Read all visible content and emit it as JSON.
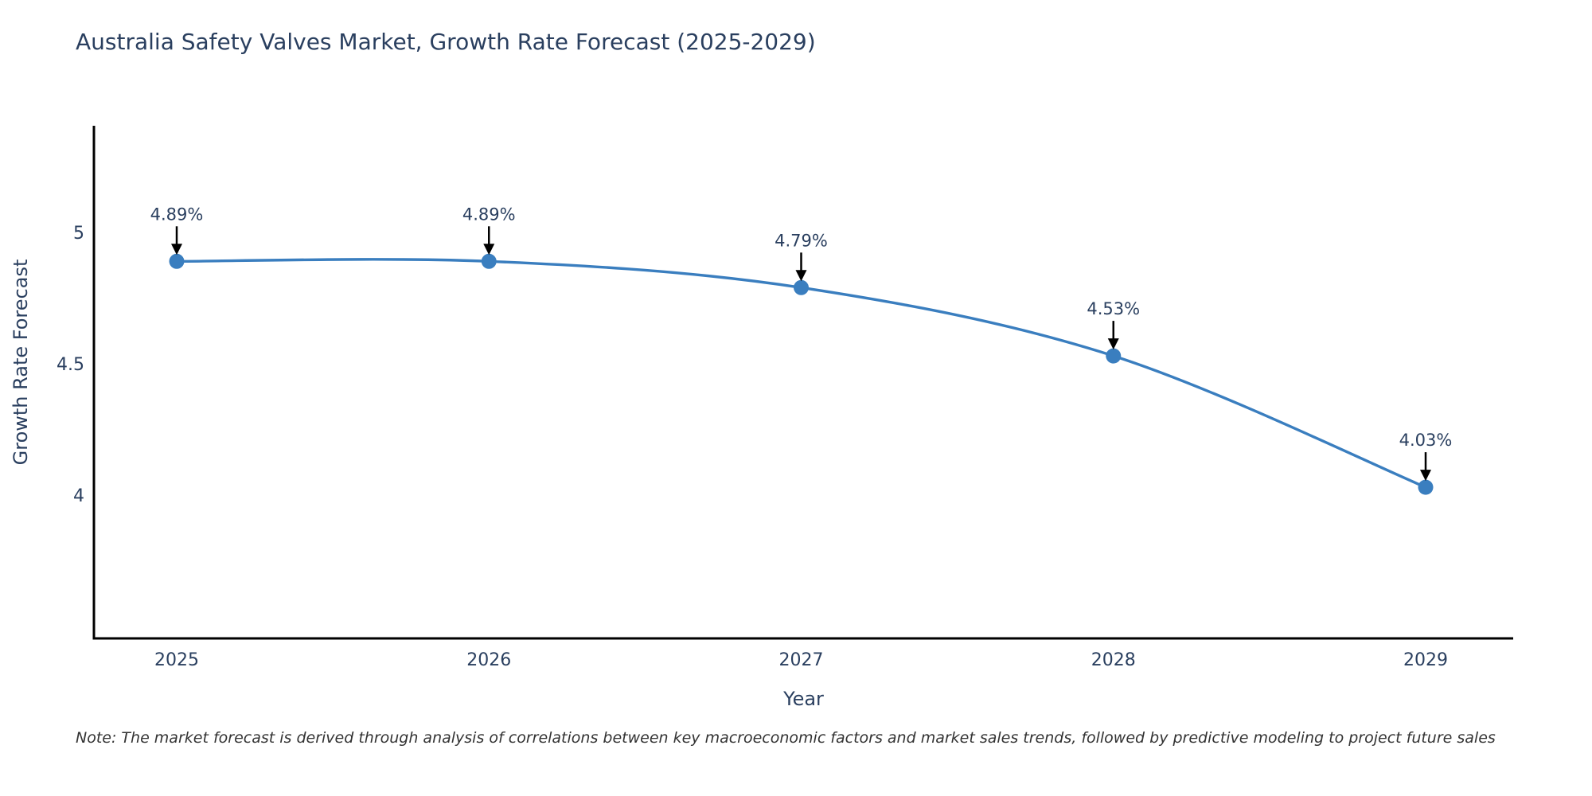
{
  "chart_data": {
    "type": "line",
    "title": "Australia Safety Valves Market, Growth Rate Forecast (2025-2029)",
    "xlabel": "Year",
    "ylabel": "Growth Rate Forecast",
    "categories": [
      "2025",
      "2026",
      "2027",
      "2028",
      "2029"
    ],
    "series": [
      {
        "name": "Growth Rate Forecast",
        "values": [
          4.89,
          4.89,
          4.79,
          4.53,
          4.03
        ],
        "point_labels": [
          "4.89%",
          "4.89%",
          "4.79%",
          "4.53%",
          "4.03%"
        ]
      }
    ],
    "line_shape": "spline",
    "markers": true,
    "annotations_with_arrows": true,
    "yticks": [
      5,
      4.5,
      4
    ],
    "ytick_labels": [
      "5",
      "4.5",
      "4"
    ],
    "ylim": [
      3.45,
      5.43
    ],
    "grid": false,
    "legend_position": "none",
    "colors": {
      "line": "#3a7ebf",
      "marker": "#3a7ebf",
      "axis_line": "#000000",
      "chart_text": "#2a3f5f",
      "annotation_text": "#2a3f5f",
      "annotation_arrow": "#000000",
      "background": "#ffffff"
    }
  },
  "note": {
    "text": "Note: The market forecast is derived through analysis of correlations between key macroeconomic factors and market sales trends, followed by predictive modeling to project future sales"
  }
}
